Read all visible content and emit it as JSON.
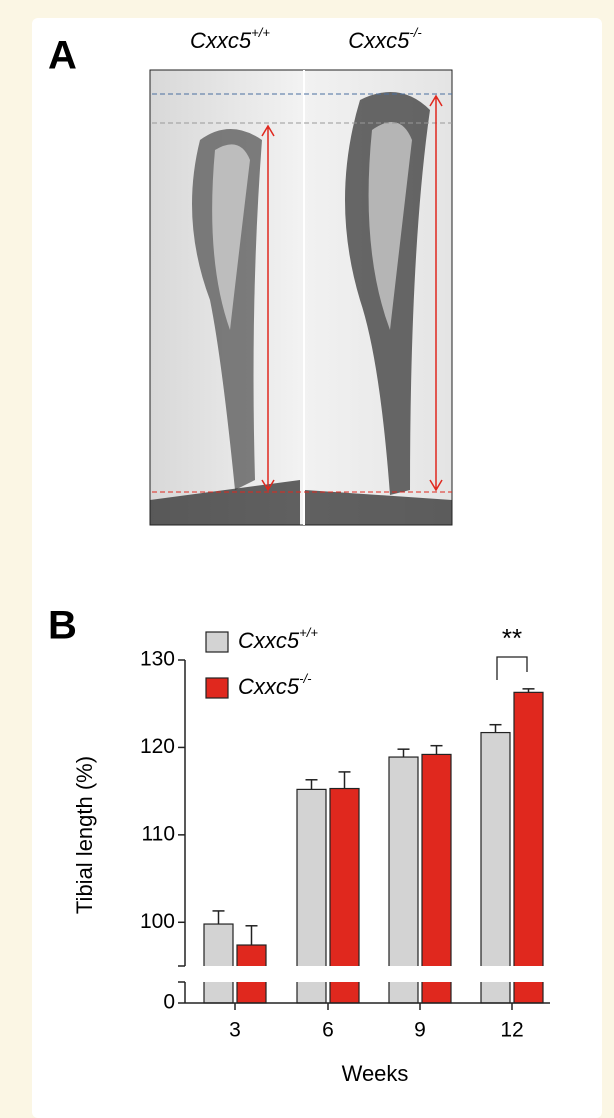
{
  "panel_a": {
    "label": "A",
    "columns": [
      {
        "base": "Cxxc5",
        "sup": "+/+"
      },
      {
        "base": "Cxxc5",
        "sup": "-/-"
      }
    ]
  },
  "chart_data": {
    "type": "bar",
    "panel_label": "B",
    "y_label": "Tibial length (%)",
    "x_label": "Weeks",
    "categories": [
      "3",
      "6",
      "9",
      "12"
    ],
    "series": [
      {
        "name": "Cxxc5",
        "name_sup": "+/+",
        "color": "#d3d3d3",
        "values": [
          99.8,
          115.2,
          118.9,
          121.7
        ],
        "errors": [
          1.5,
          1.1,
          0.9,
          0.9
        ]
      },
      {
        "name": "Cxxc5",
        "name_sup": "-/-",
        "color": "#e0281e",
        "values": [
          97.4,
          115.3,
          119.2,
          126.3
        ],
        "errors": [
          2.2,
          1.9,
          1.0,
          0.4
        ]
      }
    ],
    "ylim": [
      0,
      130
    ],
    "yticks": [
      0,
      100,
      110,
      120,
      130
    ],
    "axis_break": [
      3,
      95
    ],
    "annotations": [
      {
        "text": "**",
        "category": 3
      }
    ]
  }
}
